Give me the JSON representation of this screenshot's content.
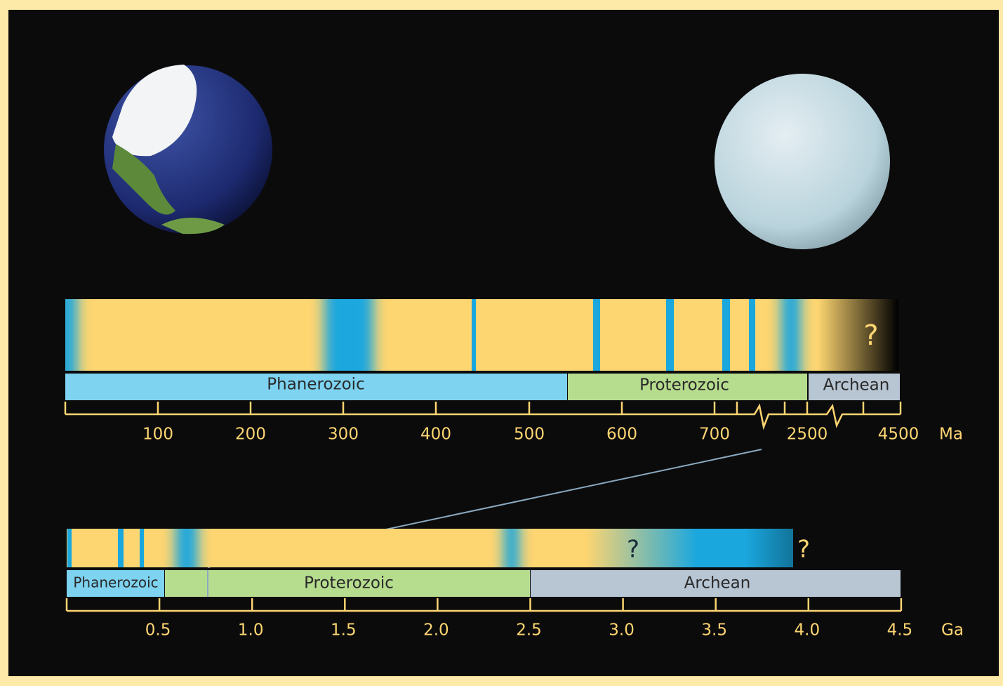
{
  "top_timeline": {
    "eons": [
      "Phanerozoic",
      "Proterozoic",
      "Archean"
    ],
    "tick_labels": [
      "100",
      "200",
      "300",
      "400",
      "500",
      "600",
      "700",
      "2500",
      "4500"
    ],
    "unit": "Ma",
    "question_mark": "?"
  },
  "bottom_timeline": {
    "eons": [
      "Phanerozoic",
      "Proterozoic",
      "Archean"
    ],
    "tick_labels": [
      "0.5",
      "1.0",
      "1.5",
      "2.0",
      "2.5",
      "3.0",
      "3.5",
      "4.0",
      "4.5"
    ],
    "unit": "Ga",
    "question_marks": [
      "?",
      "?"
    ]
  }
}
